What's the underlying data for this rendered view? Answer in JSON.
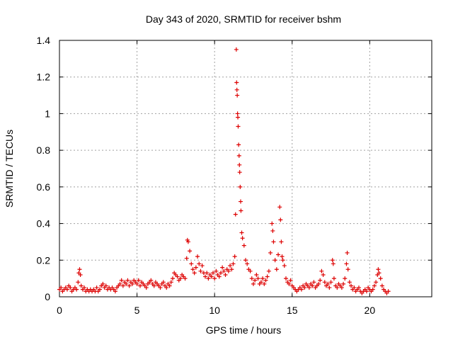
{
  "chart_data": {
    "type": "scatter",
    "title": "Day 343 of 2020, SRMTID for receiver bshm",
    "xlabel": "GPS time / hours",
    "ylabel": "SRMTID / TECUs",
    "xlim": [
      0,
      24
    ],
    "ylim": [
      0,
      1.4
    ],
    "xticks": [
      0,
      5,
      10,
      15,
      20
    ],
    "yticks": [
      0,
      0.2,
      0.4,
      0.6,
      0.8,
      1,
      1.2,
      1.4
    ],
    "xtick_labels": [
      "0",
      "5",
      "10",
      "15",
      "20"
    ],
    "ytick_labels": [
      "0",
      "0.2",
      "0.4",
      "0.6",
      "0.8",
      "1",
      "1.2",
      "1.4"
    ],
    "grid": true,
    "marker": "plus",
    "series": [
      {
        "name": "SRMTID",
        "color": "#dd0000",
        "points": [
          [
            0.0,
            0.04
          ],
          [
            0.1,
            0.05
          ],
          [
            0.2,
            0.03
          ],
          [
            0.3,
            0.04
          ],
          [
            0.4,
            0.05
          ],
          [
            0.5,
            0.04
          ],
          [
            0.6,
            0.06
          ],
          [
            0.7,
            0.05
          ],
          [
            0.8,
            0.03
          ],
          [
            0.9,
            0.04
          ],
          [
            1.0,
            0.05
          ],
          [
            1.1,
            0.04
          ],
          [
            1.2,
            0.08
          ],
          [
            1.25,
            0.13
          ],
          [
            1.3,
            0.15
          ],
          [
            1.35,
            0.12
          ],
          [
            1.4,
            0.06
          ],
          [
            1.5,
            0.04
          ],
          [
            1.6,
            0.05
          ],
          [
            1.7,
            0.03
          ],
          [
            1.8,
            0.04
          ],
          [
            1.9,
            0.03
          ],
          [
            2.0,
            0.04
          ],
          [
            2.1,
            0.03
          ],
          [
            2.2,
            0.04
          ],
          [
            2.3,
            0.03
          ],
          [
            2.4,
            0.05
          ],
          [
            2.5,
            0.03
          ],
          [
            2.6,
            0.04
          ],
          [
            2.7,
            0.06
          ],
          [
            2.8,
            0.07
          ],
          [
            2.9,
            0.05
          ],
          [
            3.0,
            0.06
          ],
          [
            3.1,
            0.04
          ],
          [
            3.2,
            0.05
          ],
          [
            3.3,
            0.04
          ],
          [
            3.4,
            0.05
          ],
          [
            3.5,
            0.04
          ],
          [
            3.6,
            0.03
          ],
          [
            3.7,
            0.05
          ],
          [
            3.8,
            0.06
          ],
          [
            3.9,
            0.07
          ],
          [
            4.0,
            0.09
          ],
          [
            4.1,
            0.06
          ],
          [
            4.2,
            0.08
          ],
          [
            4.3,
            0.07
          ],
          [
            4.4,
            0.09
          ],
          [
            4.5,
            0.06
          ],
          [
            4.6,
            0.08
          ],
          [
            4.7,
            0.07
          ],
          [
            4.8,
            0.09
          ],
          [
            4.9,
            0.08
          ],
          [
            5.0,
            0.07
          ],
          [
            5.1,
            0.09
          ],
          [
            5.2,
            0.06
          ],
          [
            5.3,
            0.08
          ],
          [
            5.4,
            0.07
          ],
          [
            5.5,
            0.06
          ],
          [
            5.6,
            0.05
          ],
          [
            5.7,
            0.07
          ],
          [
            5.8,
            0.08
          ],
          [
            5.9,
            0.09
          ],
          [
            6.0,
            0.07
          ],
          [
            6.1,
            0.06
          ],
          [
            6.2,
            0.08
          ],
          [
            6.3,
            0.07
          ],
          [
            6.4,
            0.06
          ],
          [
            6.5,
            0.05
          ],
          [
            6.6,
            0.07
          ],
          [
            6.7,
            0.08
          ],
          [
            6.8,
            0.06
          ],
          [
            6.9,
            0.05
          ],
          [
            7.0,
            0.07
          ],
          [
            7.1,
            0.06
          ],
          [
            7.2,
            0.08
          ],
          [
            7.3,
            0.1
          ],
          [
            7.4,
            0.13
          ],
          [
            7.5,
            0.12
          ],
          [
            7.6,
            0.11
          ],
          [
            7.7,
            0.09
          ],
          [
            7.8,
            0.1
          ],
          [
            7.9,
            0.12
          ],
          [
            8.0,
            0.11
          ],
          [
            8.1,
            0.1
          ],
          [
            8.2,
            0.21
          ],
          [
            8.25,
            0.31
          ],
          [
            8.3,
            0.3
          ],
          [
            8.4,
            0.25
          ],
          [
            8.5,
            0.18
          ],
          [
            8.6,
            0.15
          ],
          [
            8.7,
            0.13
          ],
          [
            8.8,
            0.16
          ],
          [
            8.9,
            0.22
          ],
          [
            9.0,
            0.18
          ],
          [
            9.1,
            0.14
          ],
          [
            9.2,
            0.17
          ],
          [
            9.3,
            0.13
          ],
          [
            9.4,
            0.11
          ],
          [
            9.5,
            0.13
          ],
          [
            9.6,
            0.1
          ],
          [
            9.7,
            0.12
          ],
          [
            9.8,
            0.11
          ],
          [
            9.9,
            0.13
          ],
          [
            10.0,
            0.1
          ],
          [
            10.1,
            0.14
          ],
          [
            10.2,
            0.12
          ],
          [
            10.3,
            0.11
          ],
          [
            10.4,
            0.13
          ],
          [
            10.5,
            0.16
          ],
          [
            10.6,
            0.14
          ],
          [
            10.7,
            0.12
          ],
          [
            10.8,
            0.15
          ],
          [
            10.9,
            0.14
          ],
          [
            11.0,
            0.17
          ],
          [
            11.1,
            0.15
          ],
          [
            11.2,
            0.18
          ],
          [
            11.3,
            0.22
          ],
          [
            11.35,
            0.45
          ],
          [
            11.4,
            1.35
          ],
          [
            11.42,
            1.17
          ],
          [
            11.44,
            1.13
          ],
          [
            11.46,
            1.1
          ],
          [
            11.48,
            1.0
          ],
          [
            11.5,
            0.98
          ],
          [
            11.52,
            0.93
          ],
          [
            11.55,
            0.83
          ],
          [
            11.58,
            0.77
          ],
          [
            11.6,
            0.72
          ],
          [
            11.62,
            0.68
          ],
          [
            11.65,
            0.6
          ],
          [
            11.68,
            0.52
          ],
          [
            11.7,
            0.47
          ],
          [
            11.75,
            0.35
          ],
          [
            11.8,
            0.32
          ],
          [
            11.9,
            0.28
          ],
          [
            12.0,
            0.2
          ],
          [
            12.1,
            0.18
          ],
          [
            12.2,
            0.15
          ],
          [
            12.3,
            0.14
          ],
          [
            12.4,
            0.1
          ],
          [
            12.5,
            0.07
          ],
          [
            12.6,
            0.09
          ],
          [
            12.7,
            0.12
          ],
          [
            12.8,
            0.1
          ],
          [
            12.9,
            0.07
          ],
          [
            13.0,
            0.08
          ],
          [
            13.1,
            0.1
          ],
          [
            13.2,
            0.07
          ],
          [
            13.3,
            0.09
          ],
          [
            13.4,
            0.11
          ],
          [
            13.5,
            0.14
          ],
          [
            13.6,
            0.24
          ],
          [
            13.7,
            0.4
          ],
          [
            13.75,
            0.36
          ],
          [
            13.8,
            0.3
          ],
          [
            13.9,
            0.2
          ],
          [
            14.0,
            0.15
          ],
          [
            14.1,
            0.23
          ],
          [
            14.2,
            0.49
          ],
          [
            14.25,
            0.42
          ],
          [
            14.3,
            0.3
          ],
          [
            14.35,
            0.22
          ],
          [
            14.4,
            0.2
          ],
          [
            14.5,
            0.17
          ],
          [
            14.6,
            0.1
          ],
          [
            14.7,
            0.08
          ],
          [
            14.8,
            0.07
          ],
          [
            14.9,
            0.09
          ],
          [
            15.0,
            0.06
          ],
          [
            15.1,
            0.05
          ],
          [
            15.2,
            0.04
          ],
          [
            15.3,
            0.03
          ],
          [
            15.4,
            0.04
          ],
          [
            15.5,
            0.05
          ],
          [
            15.6,
            0.04
          ],
          [
            15.7,
            0.06
          ],
          [
            15.8,
            0.05
          ],
          [
            15.9,
            0.07
          ],
          [
            16.0,
            0.06
          ],
          [
            16.1,
            0.05
          ],
          [
            16.2,
            0.07
          ],
          [
            16.3,
            0.06
          ],
          [
            16.4,
            0.08
          ],
          [
            16.5,
            0.05
          ],
          [
            16.6,
            0.06
          ],
          [
            16.7,
            0.07
          ],
          [
            16.8,
            0.09
          ],
          [
            16.9,
            0.14
          ],
          [
            17.0,
            0.12
          ],
          [
            17.1,
            0.08
          ],
          [
            17.2,
            0.06
          ],
          [
            17.3,
            0.07
          ],
          [
            17.4,
            0.05
          ],
          [
            17.5,
            0.08
          ],
          [
            17.6,
            0.2
          ],
          [
            17.65,
            0.18
          ],
          [
            17.7,
            0.1
          ],
          [
            17.8,
            0.06
          ],
          [
            17.9,
            0.05
          ],
          [
            18.0,
            0.07
          ],
          [
            18.1,
            0.06
          ],
          [
            18.2,
            0.05
          ],
          [
            18.3,
            0.07
          ],
          [
            18.4,
            0.1
          ],
          [
            18.5,
            0.18
          ],
          [
            18.55,
            0.24
          ],
          [
            18.6,
            0.15
          ],
          [
            18.7,
            0.08
          ],
          [
            18.8,
            0.06
          ],
          [
            18.9,
            0.04
          ],
          [
            19.0,
            0.05
          ],
          [
            19.1,
            0.03
          ],
          [
            19.2,
            0.04
          ],
          [
            19.3,
            0.05
          ],
          [
            19.4,
            0.03
          ],
          [
            19.5,
            0.02
          ],
          [
            19.6,
            0.03
          ],
          [
            19.7,
            0.04
          ],
          [
            19.8,
            0.03
          ],
          [
            19.9,
            0.05
          ],
          [
            20.0,
            0.04
          ],
          [
            20.1,
            0.03
          ],
          [
            20.2,
            0.04
          ],
          [
            20.3,
            0.06
          ],
          [
            20.4,
            0.08
          ],
          [
            20.5,
            0.12
          ],
          [
            20.55,
            0.15
          ],
          [
            20.6,
            0.13
          ],
          [
            20.7,
            0.1
          ],
          [
            20.8,
            0.06
          ],
          [
            20.9,
            0.04
          ],
          [
            21.0,
            0.03
          ],
          [
            21.1,
            0.02
          ],
          [
            21.2,
            0.03
          ]
        ]
      }
    ]
  }
}
